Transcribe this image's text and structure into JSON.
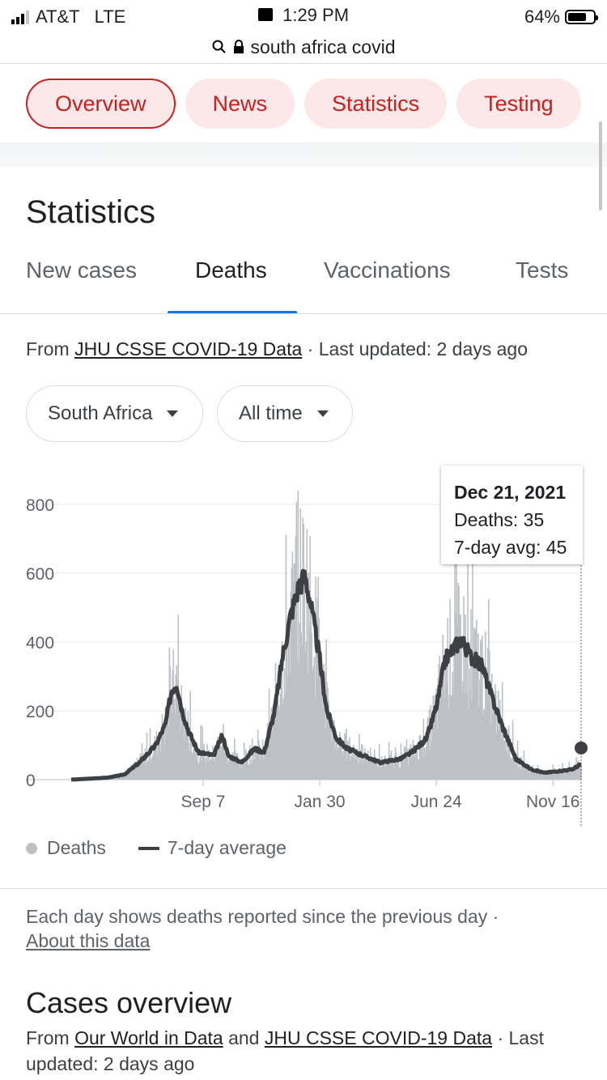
{
  "status_bar": {
    "carrier": "AT&T",
    "network": "LTE",
    "time": "1:29 PM",
    "battery": "64%"
  },
  "browser": {
    "url_text": "south africa covid"
  },
  "chips": [
    "Overview",
    "News",
    "Statistics",
    "Testing"
  ],
  "statistics": {
    "title": "Statistics",
    "tabs": [
      "New cases",
      "Deaths",
      "Vaccinations",
      "Tests"
    ],
    "active_tab": "Deaths",
    "source_prefix": "From",
    "source_link": "JHU CSSE COVID-19 Data",
    "source_suffix": "· Last updated: 2 days ago",
    "region_dropdown": "South Africa",
    "range_dropdown": "All time",
    "tooltip": {
      "date": "Dec 21, 2021",
      "deaths": "Deaths: 35",
      "avg": "7-day avg: 45"
    },
    "legend": {
      "bars": "Deaths",
      "line": "7-day average"
    },
    "note_text": "Each day shows deaths reported since the previous day ·",
    "note_link": "About this data"
  },
  "cases_overview": {
    "title": "Cases overview",
    "src_prefix": "From",
    "src_link1": "Our World in Data",
    "src_mid": "and",
    "src_link2": "JHU CSSE COVID-19 Data",
    "src_suffix": "· Last updated: 2 days ago"
  },
  "chart_data": {
    "type": "bar",
    "title": "",
    "xlabel": "",
    "ylabel": "",
    "ylim": [
      0,
      800
    ],
    "yticks": [
      0,
      200,
      400,
      600,
      800
    ],
    "xtick_labels": [
      "Sep 7",
      "Jan 30",
      "Jun 24",
      "Nov 16"
    ],
    "series": [
      {
        "name": "Deaths",
        "kind": "bar",
        "color": "#bdc1c6"
      },
      {
        "name": "7-day average",
        "kind": "line",
        "color": "#3c4043"
      }
    ],
    "avg_points": [
      [
        "2020-03-27",
        0
      ],
      [
        "2020-04-20",
        3
      ],
      [
        "2020-05-12",
        6
      ],
      [
        "2020-06-01",
        15
      ],
      [
        "2020-06-20",
        50
      ],
      [
        "2020-07-10",
        100
      ],
      [
        "2020-07-22",
        160
      ],
      [
        "2020-07-30",
        260
      ],
      [
        "2020-08-05",
        280
      ],
      [
        "2020-08-12",
        200
      ],
      [
        "2020-08-20",
        140
      ],
      [
        "2020-09-01",
        80
      ],
      [
        "2020-09-20",
        70
      ],
      [
        "2020-10-01",
        130
      ],
      [
        "2020-10-08",
        70
      ],
      [
        "2020-10-25",
        50
      ],
      [
        "2020-11-10",
        90
      ],
      [
        "2020-11-22",
        80
      ],
      [
        "2020-12-05",
        200
      ],
      [
        "2020-12-15",
        360
      ],
      [
        "2020-12-25",
        480
      ],
      [
        "2021-01-05",
        570
      ],
      [
        "2021-01-12",
        590
      ],
      [
        "2021-01-18",
        520
      ],
      [
        "2021-01-28",
        380
      ],
      [
        "2021-02-08",
        200
      ],
      [
        "2021-02-20",
        120
      ],
      [
        "2021-03-05",
        90
      ],
      [
        "2021-03-25",
        70
      ],
      [
        "2021-04-15",
        50
      ],
      [
        "2021-05-10",
        60
      ],
      [
        "2021-05-25",
        80
      ],
      [
        "2021-06-12",
        120
      ],
      [
        "2021-06-25",
        220
      ],
      [
        "2021-07-05",
        350
      ],
      [
        "2021-07-15",
        380
      ],
      [
        "2021-07-25",
        410
      ],
      [
        "2021-08-05",
        360
      ],
      [
        "2021-08-20",
        330
      ],
      [
        "2021-09-01",
        240
      ],
      [
        "2021-09-15",
        150
      ],
      [
        "2021-10-01",
        60
      ],
      [
        "2021-10-20",
        30
      ],
      [
        "2021-11-05",
        20
      ],
      [
        "2021-11-25",
        25
      ],
      [
        "2021-12-10",
        30
      ],
      [
        "2021-12-21",
        45
      ]
    ]
  }
}
